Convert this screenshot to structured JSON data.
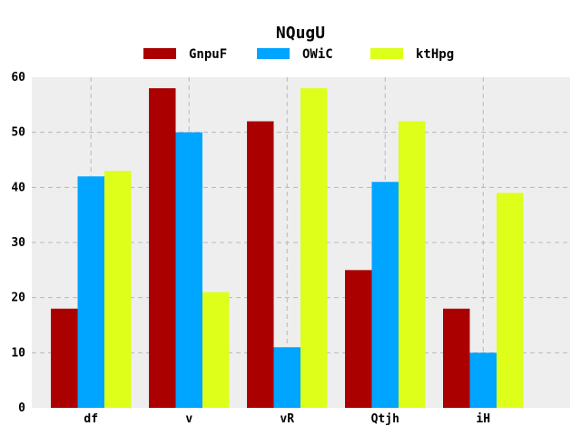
{
  "chart_data": {
    "type": "bar",
    "title": "NQugU",
    "categories": [
      "df",
      "v",
      "vR",
      "Qtjh",
      "iH"
    ],
    "series": [
      {
        "name": "GnpuF",
        "color": "#aa0000",
        "values": [
          18,
          58,
          52,
          25,
          18
        ]
      },
      {
        "name": "OWiC",
        "color": "#00a5ff",
        "values": [
          42,
          50,
          11,
          41,
          10
        ]
      },
      {
        "name": "ktHpg",
        "color": "#ddff1a",
        "values": [
          43,
          21,
          58,
          52,
          39
        ]
      }
    ],
    "xlabel": "",
    "ylabel": "",
    "ylim": [
      0,
      60
    ],
    "yticks": [
      0,
      10,
      20,
      30,
      40,
      50,
      60
    ],
    "grid": true,
    "legend_position": "top-center",
    "plot_background": "#eeeeee"
  }
}
